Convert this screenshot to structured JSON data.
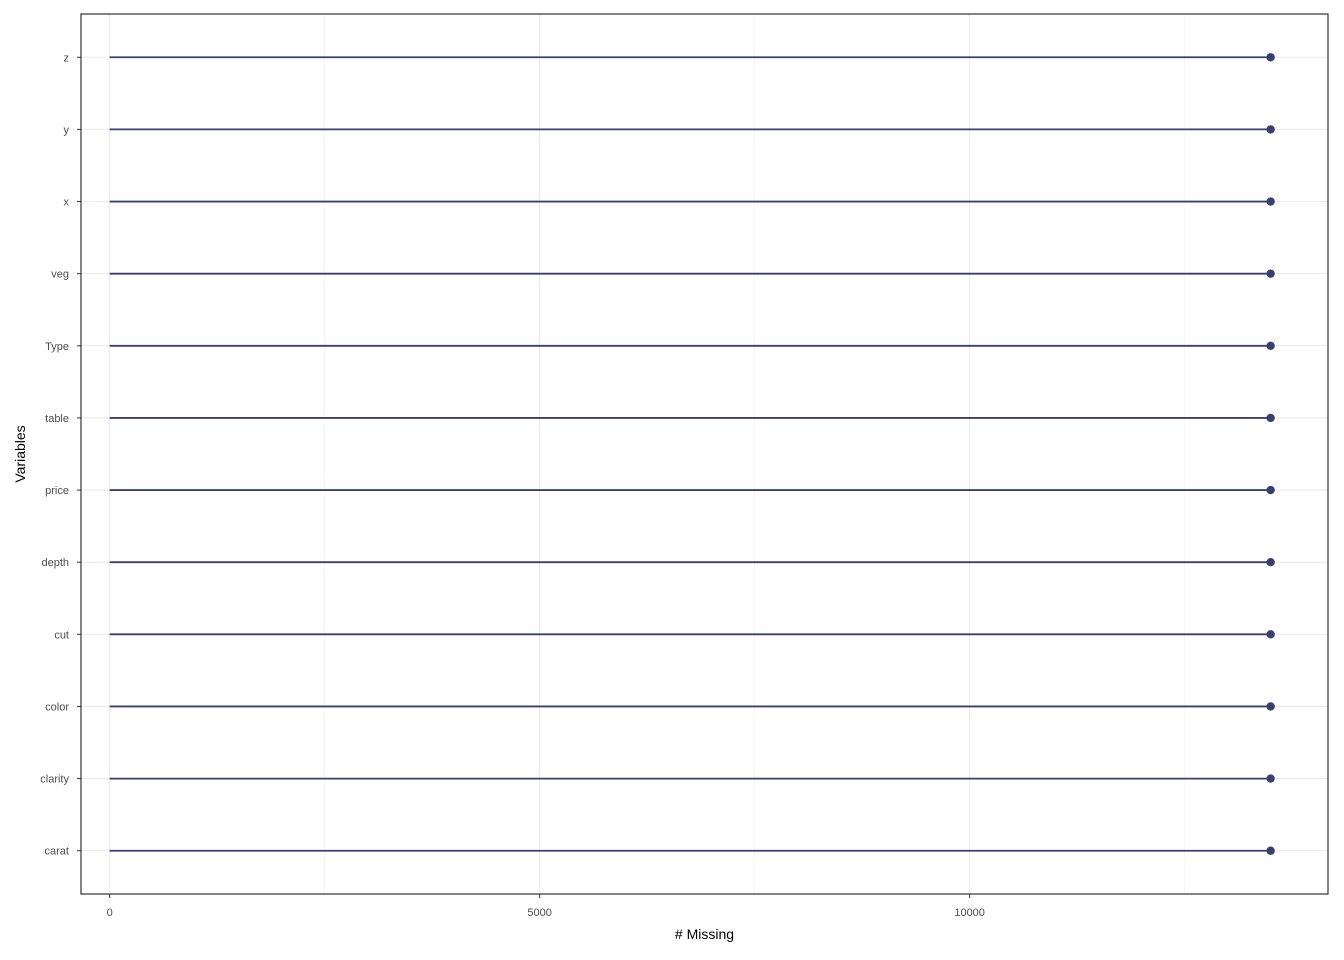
{
  "chart_data": {
    "type": "lollipop",
    "xlabel": "# Missing",
    "ylabel": "Variables",
    "xlim": [
      -333,
      14167
    ],
    "x_ticks": [
      0,
      5000,
      10000
    ],
    "x_minor_ticks": [
      2500,
      7500,
      12500
    ],
    "grid": true,
    "categories": [
      "carat",
      "clarity",
      "color",
      "cut",
      "depth",
      "price",
      "table",
      "Type",
      "veg",
      "x",
      "y",
      "z"
    ],
    "series": [
      {
        "values": [
          13500,
          13500,
          13500,
          13500,
          13500,
          13500,
          13500,
          13500,
          13500,
          13500,
          13500,
          13500
        ]
      }
    ],
    "colors": {
      "segment": "#3b3f6e",
      "point": "#3b3f6e",
      "grid_major": "#ebebeb",
      "grid_minor": "#f2f2f2",
      "panel_border": "#333333"
    }
  }
}
